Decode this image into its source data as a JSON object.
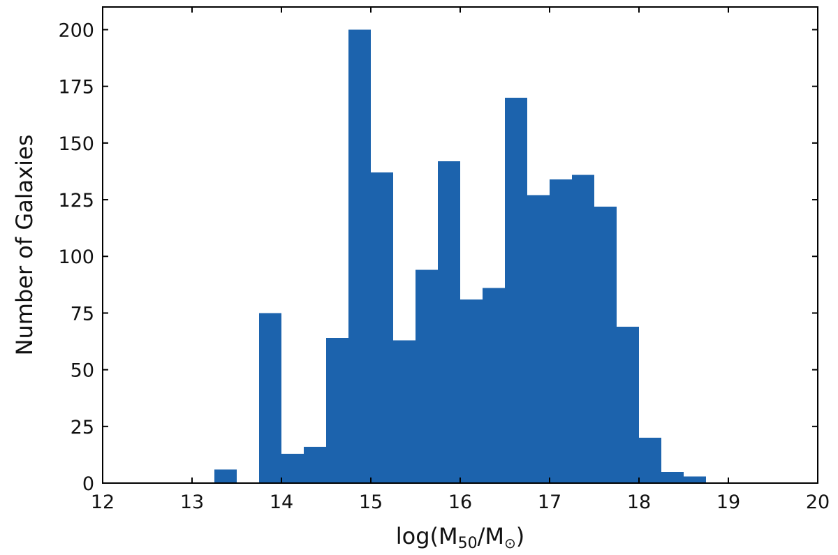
{
  "chart_data": {
    "type": "bar",
    "histogram": true,
    "xlabel": "log(M",
    "xlabel_sub": "50",
    "xlabel_mid": "/M",
    "xlabel_sub2": "⊙",
    "xlabel_end": ")",
    "ylabel": "Number of Galaxies",
    "xlim": [
      12,
      20
    ],
    "ylim": [
      0,
      210
    ],
    "xticks": [
      12,
      13,
      14,
      15,
      16,
      17,
      18,
      19,
      20
    ],
    "yticks": [
      0,
      25,
      50,
      75,
      100,
      125,
      150,
      175,
      200
    ],
    "bin_width": 0.25,
    "bins": [
      {
        "x0": 13.25,
        "x1": 13.5,
        "count": 6
      },
      {
        "x0": 13.75,
        "x1": 14.0,
        "count": 75
      },
      {
        "x0": 14.0,
        "x1": 14.25,
        "count": 13
      },
      {
        "x0": 14.25,
        "x1": 14.5,
        "count": 16
      },
      {
        "x0": 14.5,
        "x1": 14.75,
        "count": 64
      },
      {
        "x0": 14.75,
        "x1": 15.0,
        "count": 200
      },
      {
        "x0": 15.0,
        "x1": 15.25,
        "count": 137
      },
      {
        "x0": 15.25,
        "x1": 15.5,
        "count": 63
      },
      {
        "x0": 15.5,
        "x1": 15.75,
        "count": 94
      },
      {
        "x0": 15.75,
        "x1": 16.0,
        "count": 142
      },
      {
        "x0": 16.0,
        "x1": 16.25,
        "count": 81
      },
      {
        "x0": 16.25,
        "x1": 16.5,
        "count": 86
      },
      {
        "x0": 16.5,
        "x1": 16.75,
        "count": 170
      },
      {
        "x0": 16.75,
        "x1": 17.0,
        "count": 127
      },
      {
        "x0": 17.0,
        "x1": 17.25,
        "count": 134
      },
      {
        "x0": 17.25,
        "x1": 17.5,
        "count": 136
      },
      {
        "x0": 17.5,
        "x1": 17.75,
        "count": 122
      },
      {
        "x0": 17.75,
        "x1": 18.0,
        "count": 69
      },
      {
        "x0": 18.0,
        "x1": 18.25,
        "count": 20
      },
      {
        "x0": 18.25,
        "x1": 18.5,
        "count": 5
      },
      {
        "x0": 18.5,
        "x1": 18.75,
        "count": 3
      }
    ],
    "bar_color": "#1c63ad",
    "grid": false
  }
}
